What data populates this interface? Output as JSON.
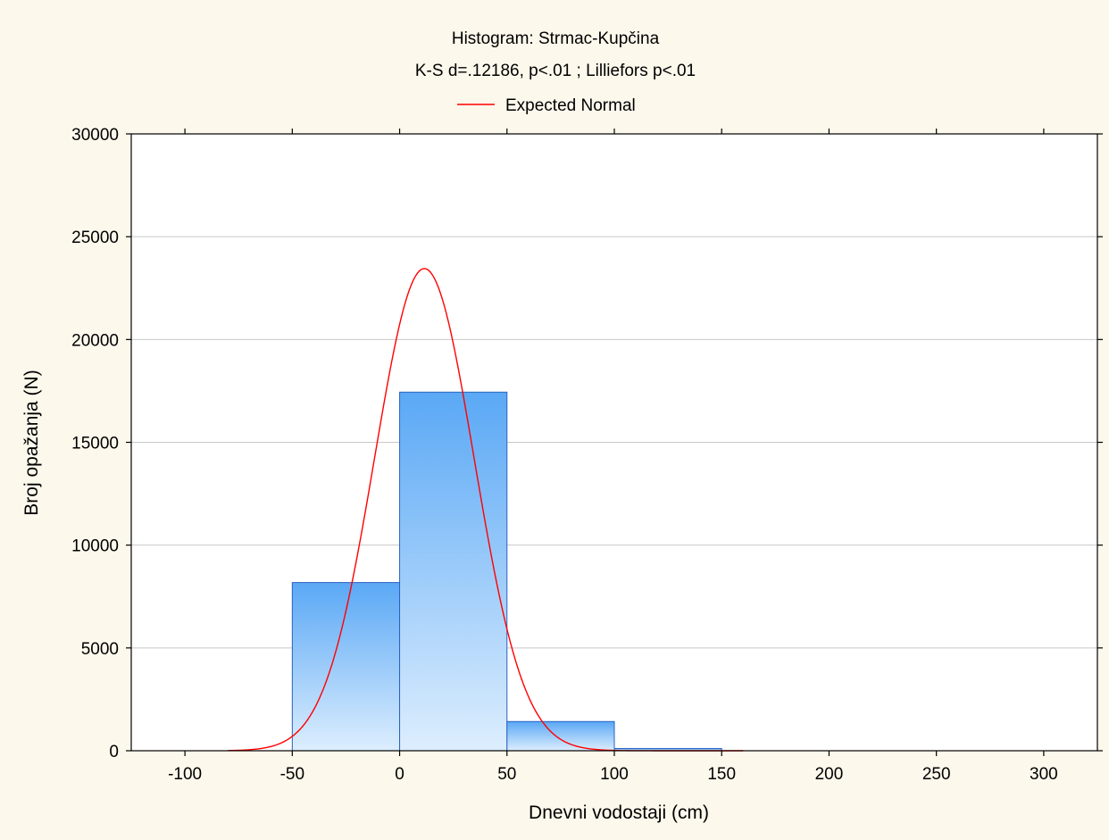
{
  "chart_data": {
    "type": "bar",
    "title": "Histogram: Strmac-Kupčina",
    "subtitle": "K-S d=.12186, p<.01 ; Lilliefors p<.01",
    "xlabel": "Dnevni vodostaji (cm)",
    "ylabel": "Broj opažanja (N)",
    "xlim": [
      -125,
      325
    ],
    "ylim": [
      0,
      30000
    ],
    "x_ticks": [
      -100,
      -50,
      0,
      50,
      100,
      150,
      200,
      250,
      300
    ],
    "y_ticks": [
      0,
      5000,
      10000,
      15000,
      20000,
      25000,
      30000
    ],
    "grid": "horizontal",
    "legend": {
      "position": "top-center",
      "entries": [
        "Expected Normal"
      ]
    },
    "bins": [
      {
        "from": -50,
        "to": 0,
        "count": 8180
      },
      {
        "from": 0,
        "to": 50,
        "count": 17440
      },
      {
        "from": 50,
        "to": 100,
        "count": 1420
      },
      {
        "from": 100,
        "to": 150,
        "count": 110
      }
    ],
    "expected_normal": {
      "mean": 11.5,
      "sd": 23.2,
      "peak": 23450
    },
    "colors": {
      "background": "#fdf8ec",
      "plot_background": "#ffffff",
      "bar_top": "#5aa8f5",
      "bar_bottom": "#ddeefe",
      "bar_stroke": "#2a62c0",
      "curve": "#ff0000",
      "grid": "#c8c8c8"
    }
  }
}
